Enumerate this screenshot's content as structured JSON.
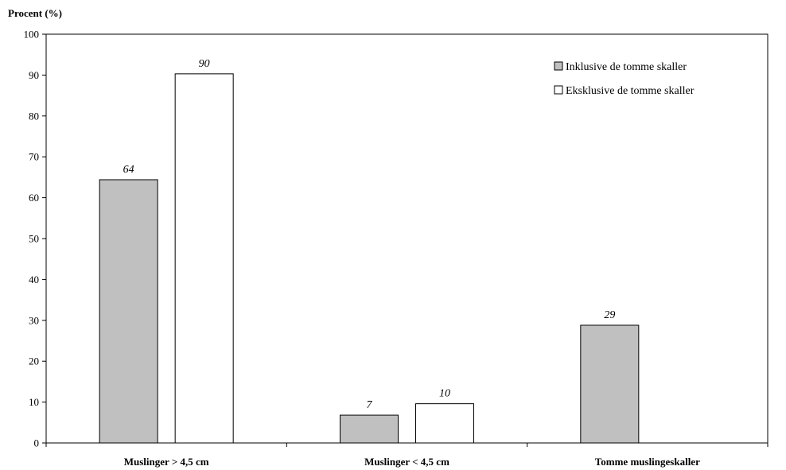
{
  "chart_data": {
    "type": "bar",
    "ylabel": "Procent (%)",
    "xlabel": "",
    "ylim": [
      0,
      100
    ],
    "yticks": [
      0,
      10,
      20,
      30,
      40,
      50,
      60,
      70,
      80,
      90,
      100
    ],
    "categories": [
      "Muslinger > 4,5 cm",
      "Muslinger < 4,5 cm",
      "Tomme muslingeskaller"
    ],
    "series": [
      {
        "name": "Inklusive de tomme skaller",
        "color": "#c0c0c0",
        "values": [
          64.4,
          6.8,
          28.8
        ],
        "labels": [
          "64",
          "7",
          "29"
        ]
      },
      {
        "name": "Eksklusive de tomme skaller",
        "color": "#ffffff",
        "values": [
          90.3,
          9.6,
          null
        ],
        "labels": [
          "90",
          "10",
          null
        ]
      }
    ],
    "legend_position": "top-right",
    "grid": false
  }
}
